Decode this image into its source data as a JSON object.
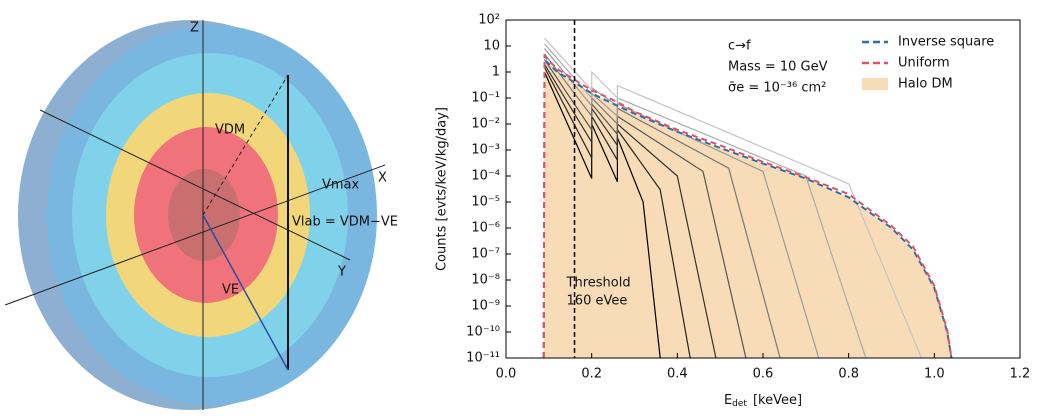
{
  "diagram": {
    "labels": {
      "z": "Z",
      "x": "X",
      "y": "Y",
      "v_dm": "VDM",
      "v_max": "Vmax",
      "v_lab": "Vlab = VDM−VE",
      "v_e": "VE"
    }
  },
  "chart_data": {
    "type": "line",
    "y_label": "Counts [evts/keV/kg/day]",
    "x_label": {
      "symbol": "E",
      "subscript": "det",
      "unit": "[keVee]"
    },
    "annotations": [
      "c→f",
      "Mass = 10 GeV",
      "σ̄e = 10⁻³⁶ cm²"
    ],
    "threshold": {
      "x": 0.16,
      "label": [
        "Threshold",
        "160 eVee"
      ]
    },
    "log_y": true,
    "legend": "upper right",
    "xlim": [
      0,
      1.2
    ],
    "xticks": [
      {
        "value": 0,
        "label": "0.0"
      },
      0.2,
      0.4,
      0.6,
      0.8,
      {
        "value": 1,
        "label": "1.0"
      },
      1.2
    ],
    "ylim": [
      1e-11,
      100
    ],
    "yticks": [
      {
        "value": 100,
        "label": "10²"
      },
      10,
      1,
      {
        "value": 0.1,
        "label": "10⁻¹"
      },
      {
        "value": 0.01,
        "label": "10⁻²"
      },
      {
        "value": 0.001,
        "label": "10⁻³"
      },
      {
        "value": 0.0001,
        "label": "10⁻⁴"
      },
      {
        "value": 1e-05,
        "label": "10⁻⁵"
      },
      {
        "value": 1e-06,
        "label": "10⁻⁶"
      },
      {
        "value": 1e-07,
        "label": "10⁻⁷"
      },
      {
        "value": 1e-08,
        "label": "10⁻⁸"
      },
      {
        "value": 1e-09,
        "label": "10⁻⁹"
      },
      {
        "value": 1e-10,
        "label": "10⁻¹⁰"
      },
      {
        "value": 1e-11,
        "label": "10⁻¹¹"
      }
    ],
    "series": [
      {
        "name": "Inverse square",
        "color": "#2f6f9f",
        "dashed": true,
        "x": [
          0.088,
          0.09,
          0.12,
          0.16,
          0.2,
          0.26,
          0.3,
          0.4,
          0.5,
          0.6,
          0.7,
          0.8,
          0.9,
          0.95,
          1.0,
          1.03,
          1.04
        ],
        "values": [
          1e-11,
          3,
          1,
          0.4,
          0.15,
          0.05,
          0.025,
          0.005,
          0.0012,
          0.0003,
          8e-05,
          1.5e-05,
          1e-06,
          1.5e-07,
          5e-09,
          1e-10,
          1e-11
        ]
      },
      {
        "name": "Uniform",
        "color": "#e0506a",
        "dashed": true,
        "x": [
          0.088,
          0.09,
          0.12,
          0.16,
          0.2,
          0.26,
          0.3,
          0.4,
          0.5,
          0.6,
          0.7,
          0.8,
          0.9,
          0.95,
          1.0,
          1.03,
          1.04
        ],
        "values": [
          1e-11,
          4,
          1.3,
          0.5,
          0.2,
          0.07,
          0.03,
          0.006,
          0.0015,
          0.00035,
          9e-05,
          2e-05,
          1.2e-06,
          2e-07,
          6e-09,
          1.2e-10,
          1e-11
        ]
      },
      {
        "name": "Halo DM",
        "color": "#f8dcb8",
        "fill": true,
        "x": [
          0.088,
          0.09,
          0.12,
          0.16,
          0.2,
          0.26,
          0.3,
          0.4,
          0.5,
          0.6,
          0.7,
          0.8,
          0.9,
          0.95,
          1.0,
          1.03,
          1.04
        ],
        "values": [
          1e-11,
          3,
          1,
          0.4,
          0.15,
          0.05,
          0.025,
          0.005,
          0.0012,
          0.0003,
          8e-05,
          1.5e-05,
          1e-06,
          1.5e-07,
          5e-09,
          1e-10,
          1e-11
        ]
      },
      {
        "color": "#000000",
        "x": [
          0.09,
          0.2,
          0.2,
          0.26,
          0.26,
          0.32,
          0.36
        ],
        "values": [
          1,
          8e-05,
          0.01,
          6e-05,
          0.003,
          1e-05,
          1e-11
        ]
      },
      {
        "color": "#222222",
        "x": [
          0.09,
          0.2,
          0.2,
          0.26,
          0.26,
          0.36,
          0.43
        ],
        "values": [
          1.5,
          0.0005,
          0.02,
          0.0004,
          0.006,
          3e-05,
          1e-11
        ]
      },
      {
        "color": "#333333",
        "x": [
          0.09,
          0.2,
          0.2,
          0.26,
          0.26,
          0.4,
          0.49
        ],
        "values": [
          2,
          0.002,
          0.04,
          0.0015,
          0.01,
          0.0001,
          1e-11
        ]
      },
      {
        "color": "#555555",
        "x": [
          0.09,
          0.2,
          0.2,
          0.26,
          0.26,
          0.46,
          0.56
        ],
        "values": [
          3,
          0.006,
          0.06,
          0.004,
          0.02,
          0.00015,
          1e-11
        ]
      },
      {
        "color": "#777777",
        "x": [
          0.09,
          0.2,
          0.2,
          0.26,
          0.26,
          0.52,
          0.64
        ],
        "values": [
          5,
          0.02,
          0.1,
          0.01,
          0.04,
          0.0002,
          1e-11
        ]
      },
      {
        "color": "#999999",
        "x": [
          0.09,
          0.2,
          0.2,
          0.26,
          0.26,
          0.6,
          0.73
        ],
        "values": [
          8,
          0.05,
          0.15,
          0.02,
          0.06,
          0.00015,
          1e-11
        ]
      },
      {
        "color": "#aaaaaa",
        "x": [
          0.09,
          0.2,
          0.2,
          0.26,
          0.26,
          0.7,
          0.84
        ],
        "values": [
          12,
          0.1,
          0.25,
          0.05,
          0.1,
          0.0001,
          1e-11
        ]
      },
      {
        "color": "#c4c4c4",
        "x": [
          0.09,
          0.2,
          0.2,
          0.26,
          0.26,
          0.8,
          0.97
        ],
        "values": [
          20,
          0.2,
          1,
          0.1,
          0.3,
          5e-05,
          1e-11
        ]
      }
    ]
  }
}
